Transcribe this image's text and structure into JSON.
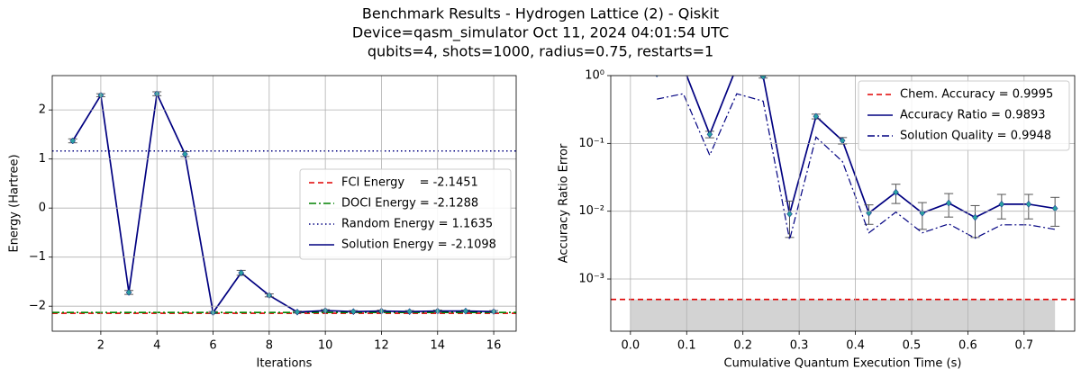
{
  "title": [
    "Benchmark Results - Hydrogen Lattice (2) - Qiskit",
    "Device=qasm_simulator  Oct 11, 2024 04:01:54 UTC",
    "qubits=4, shots=1000, radius=0.75, restarts=1"
  ],
  "chart_data": [
    {
      "type": "line",
      "xlabel": "Iterations",
      "ylabel": "Energy (Hartree)",
      "x": [
        1,
        2,
        3,
        4,
        5,
        6,
        7,
        8,
        9,
        10,
        11,
        12,
        13,
        14,
        15,
        16
      ],
      "xlim": [
        0.27,
        16.8
      ],
      "ylim": [
        -2.51,
        2.7
      ],
      "xticks": [
        2,
        4,
        6,
        8,
        10,
        12,
        14,
        16
      ],
      "yticks": [
        {
          "value": -2,
          "label": "−2"
        },
        {
          "value": -1,
          "label": "−1"
        },
        0,
        1,
        2
      ],
      "log_y": false,
      "grid": true,
      "legend": "center right",
      "hlines": [
        {
          "name": "FCI Energy    = -2.1451",
          "value": -2.1451,
          "color": "#e00000",
          "style": "dashed"
        },
        {
          "name": "DOCI Energy = -2.1288",
          "value": -2.1288,
          "color": "#008000",
          "style": "dashdot"
        },
        {
          "name": "Random Energy = 1.1635",
          "value": 1.1635,
          "color": "#000080",
          "style": "dotted"
        }
      ],
      "series": [
        {
          "name": "Solution Energy = -2.1098",
          "color": "#000080",
          "style": "solid",
          "marker_color": "#2aa1a1",
          "values": [
            1.37,
            2.3,
            -1.72,
            2.33,
            1.1,
            -2.13,
            -1.32,
            -1.78,
            -2.12,
            -2.09,
            -2.11,
            -2.1,
            -2.11,
            -2.1,
            -2.1,
            -2.11
          ],
          "errors": [
            0.04,
            0.03,
            0.04,
            0.04,
            0.05,
            0.02,
            0.05,
            0.03,
            0.02,
            0.02,
            0.02,
            0.02,
            0.02,
            0.02,
            0.02,
            0.02
          ]
        }
      ]
    },
    {
      "type": "line",
      "xlabel": "Cumulative Quantum Execution Time (s)",
      "ylabel": "Accuracy Ratio Error",
      "x": [
        0.047,
        0.094,
        0.141,
        0.189,
        0.236,
        0.283,
        0.33,
        0.377,
        0.424,
        0.472,
        0.519,
        0.566,
        0.613,
        0.66,
        0.708,
        0.755
      ],
      "xlim": [
        -0.035,
        0.79
      ],
      "ylim": [
        0.00017,
        1
      ],
      "xticks": [
        {
          "value": 0,
          "label": "0.0"
        },
        0.1,
        0.2,
        0.3,
        0.4,
        0.5,
        0.6,
        0.7
      ],
      "yticks": [
        {
          "value": 0.001,
          "label": "10⁻³"
        },
        {
          "value": 0.01,
          "label": "10⁻²"
        },
        {
          "value": 0.1,
          "label": "10⁻¹"
        },
        {
          "value": 1,
          "label": "10⁰"
        }
      ],
      "log_y": true,
      "grid": true,
      "legend": "upper right",
      "hlines": [
        {
          "name": "Chem. Accuracy = 0.9995",
          "value": 0.0005,
          "color": "#e00000",
          "style": "dashed",
          "shade": "#d3d3d3"
        }
      ],
      "series": [
        {
          "name": "Accuracy Ratio = 0.9893",
          "color": "#000080",
          "style": "solid",
          "marker_color": "#2aa1a1",
          "values": [
            1.06,
            1.34,
            0.136,
            1.35,
            0.97,
            0.0091,
            0.25,
            0.11,
            0.0094,
            0.019,
            0.0094,
            0.0132,
            0.0081,
            0.0127,
            0.0127,
            0.011
          ],
          "errors": [
            0.05,
            0.05,
            0.015,
            0.05,
            0.05,
            0.005,
            0.02,
            0.012,
            0.003,
            0.006,
            0.004,
            0.005,
            0.004,
            0.005,
            0.005,
            0.005
          ]
        },
        {
          "name": "Solution Quality = 0.9948",
          "color": "#000080",
          "style": "dashdot",
          "values": [
            0.45,
            0.54,
            0.067,
            0.54,
            0.42,
            0.0038,
            0.124,
            0.054,
            0.0048,
            0.0097,
            0.0048,
            0.0065,
            0.004,
            0.0063,
            0.0063,
            0.0054
          ]
        }
      ]
    }
  ]
}
